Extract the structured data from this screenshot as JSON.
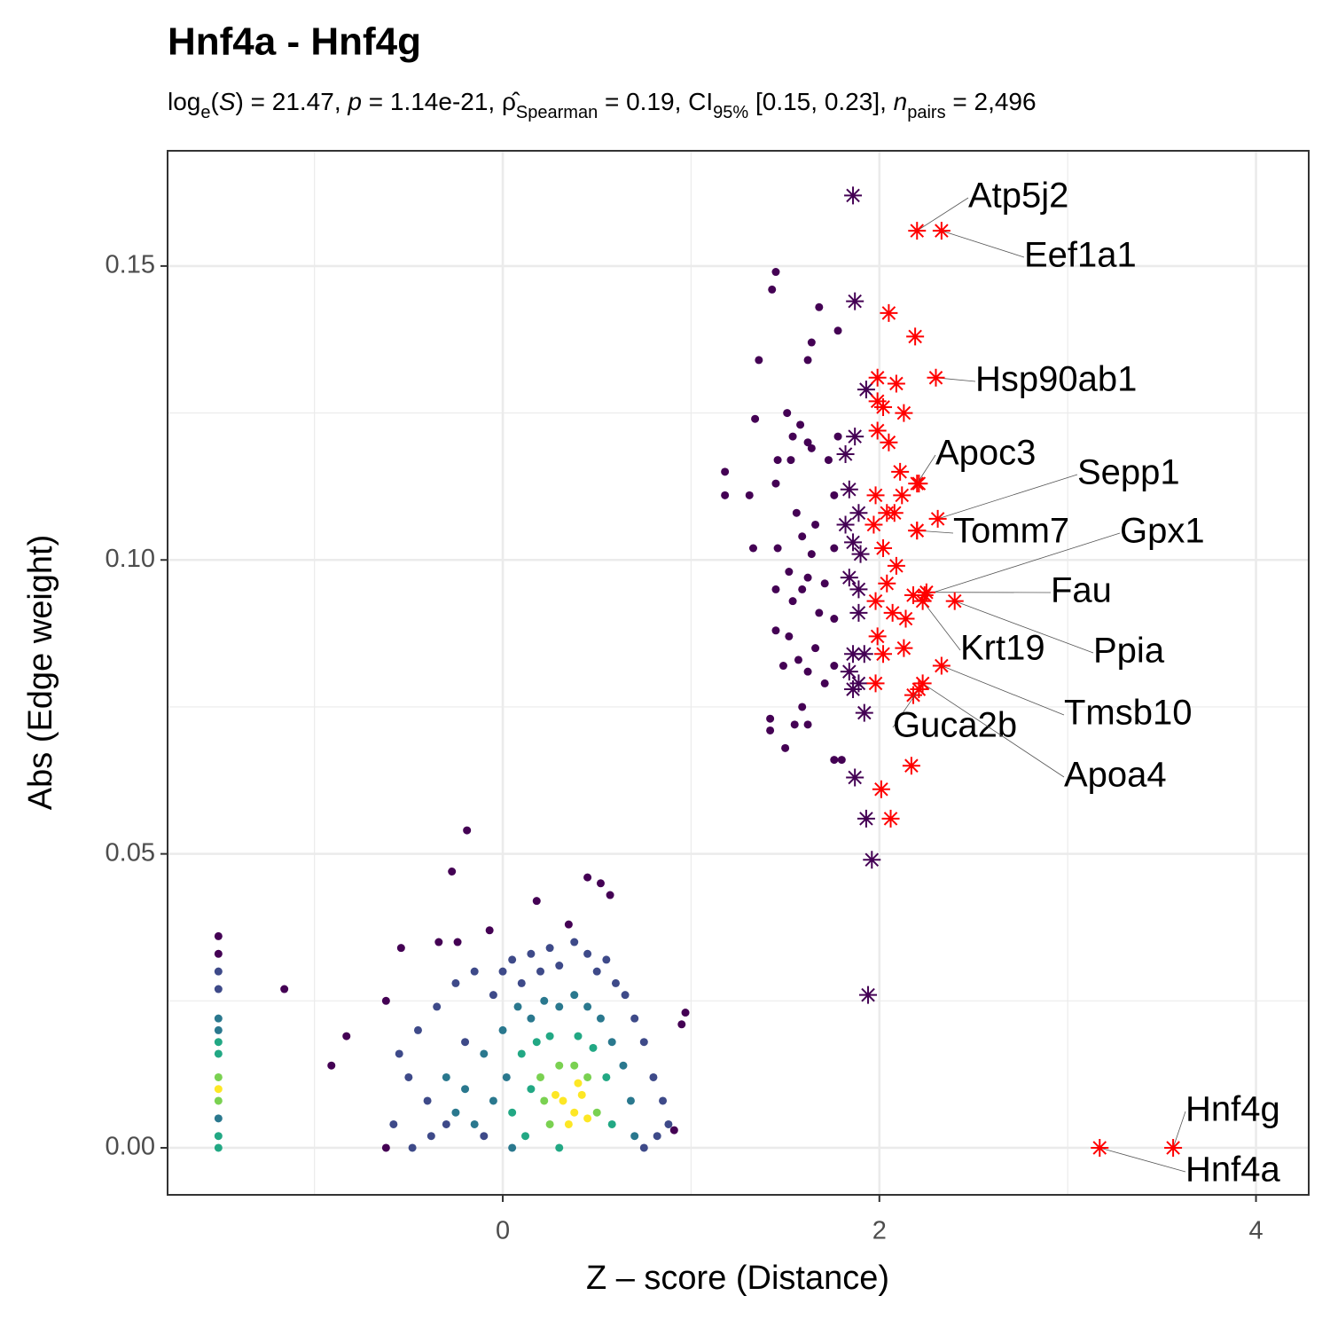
{
  "chart_data": {
    "type": "scatter",
    "title": "Hnf4a - Hnf4g",
    "subtitle": [
      {
        "text": "log",
        "style": "normal"
      },
      {
        "text": "e",
        "style": "sub"
      },
      {
        "text": "(",
        "style": "normal"
      },
      {
        "text": "S",
        "style": "italic"
      },
      {
        "text": ") = 21.47, ",
        "style": "normal"
      },
      {
        "text": "p",
        "style": "italic"
      },
      {
        "text": " = 1.14e-21, ",
        "style": "normal"
      },
      {
        "text": "ρ̂",
        "style": "normal"
      },
      {
        "text": "Spearman",
        "style": "sub"
      },
      {
        "text": " = 0.19, CI",
        "style": "normal"
      },
      {
        "text": "95%",
        "style": "sub"
      },
      {
        "text": " [0.15, 0.23], ",
        "style": "normal"
      },
      {
        "text": "n",
        "style": "italic"
      },
      {
        "text": "pairs",
        "style": "sub"
      },
      {
        "text": " = 2,496",
        "style": "normal"
      }
    ],
    "xlabel": "Z – score (Distance)",
    "ylabel": "Abs (Edge weight)",
    "xlim": [
      -1.78,
      4.28
    ],
    "ylim": [
      -0.008,
      0.1696
    ],
    "xticks": [
      0,
      2,
      4
    ],
    "yticks": [
      {
        "value": 0,
        "label": "0.00"
      },
      {
        "value": 0.05,
        "label": "0.05"
      },
      {
        "value": 0.1,
        "label": "0.10"
      },
      {
        "value": 0.15,
        "label": "0.15"
      }
    ],
    "xminor": [
      -1,
      1,
      3
    ],
    "yminor": [
      0.025,
      0.075,
      0.125
    ],
    "grid": true,
    "series": [
      {
        "marker": "dot",
        "color": "#440154",
        "x": [
          1.45,
          1.43,
          1.68,
          1.78,
          1.64,
          1.36,
          1.62,
          1.34,
          1.51,
          1.58,
          1.54,
          1.62,
          1.78,
          1.18,
          1.46,
          1.53,
          1.64,
          1.73,
          1.18,
          1.45,
          1.31,
          1.56,
          1.76,
          1.66,
          1.59,
          1.33,
          1.46,
          1.64,
          1.76,
          1.52,
          1.62,
          1.71,
          1.45,
          1.59,
          1.54,
          1.68,
          1.76,
          1.45,
          1.52,
          1.66,
          1.49,
          1.57,
          1.62,
          1.76,
          1.71,
          1.59,
          1.42,
          1.55,
          1.42,
          1.62,
          1.5,
          1.76,
          1.8,
          -0.19,
          -0.27,
          0.45,
          0.52,
          0.18,
          0.57,
          -0.07,
          0.35,
          -1.16,
          -0.83,
          -0.91,
          -0.62,
          0.97,
          0.95,
          -0.62,
          0.91,
          -0.54,
          -0.34,
          -0.24,
          -1.51,
          -1.51
        ],
        "values": [
          0.149,
          0.146,
          0.143,
          0.139,
          0.137,
          0.134,
          0.134,
          0.124,
          0.125,
          0.123,
          0.121,
          0.12,
          0.121,
          0.115,
          0.117,
          0.117,
          0.119,
          0.117,
          0.111,
          0.113,
          0.111,
          0.108,
          0.111,
          0.106,
          0.104,
          0.102,
          0.102,
          0.101,
          0.102,
          0.098,
          0.097,
          0.096,
          0.095,
          0.095,
          0.093,
          0.091,
          0.09,
          0.088,
          0.087,
          0.085,
          0.082,
          0.083,
          0.081,
          0.082,
          0.079,
          0.075,
          0.073,
          0.072,
          0.071,
          0.072,
          0.068,
          0.066,
          0.066,
          0.054,
          0.047,
          0.046,
          0.045,
          0.042,
          0.043,
          0.037,
          0.038,
          0.027,
          0.019,
          0.014,
          0.025,
          0.023,
          0.021,
          0.0,
          0.003,
          0.034,
          0.035,
          0.035,
          0.036,
          0.033
        ]
      },
      {
        "marker": "dot",
        "color": "#3e4a89",
        "x": [
          -0.55,
          -0.5,
          -0.45,
          -0.4,
          -0.35,
          -0.3,
          -0.25,
          -0.2,
          -0.15,
          -0.1,
          -0.05,
          0.0,
          0.05,
          0.1,
          0.15,
          0.2,
          0.25,
          0.3,
          0.38,
          0.45,
          0.5,
          0.55,
          0.6,
          0.65,
          0.7,
          0.75,
          0.8,
          0.85,
          0.88,
          -0.58,
          -0.48,
          -0.38,
          0.75,
          0.82,
          -1.51,
          -1.51
        ],
        "values": [
          0.016,
          0.012,
          0.02,
          0.008,
          0.024,
          0.004,
          0.028,
          0.018,
          0.03,
          0.002,
          0.026,
          0.03,
          0.032,
          0.028,
          0.033,
          0.03,
          0.034,
          0.031,
          0.035,
          0.033,
          0.03,
          0.032,
          0.028,
          0.026,
          0.022,
          0.018,
          0.012,
          0.008,
          0.004,
          0.004,
          0.0,
          0.002,
          0.0,
          0.002,
          0.03,
          0.027
        ]
      },
      {
        "marker": "dot",
        "color": "#2a788e",
        "x": [
          -0.3,
          -0.25,
          -0.2,
          -0.15,
          -0.1,
          -0.05,
          0.0,
          0.05,
          0.08,
          0.15,
          0.22,
          0.3,
          0.38,
          0.45,
          0.52,
          0.58,
          0.64,
          0.68,
          0.7,
          0.02,
          -1.51,
          -1.51,
          -1.51
        ],
        "values": [
          0.012,
          0.006,
          0.01,
          0.004,
          0.016,
          0.008,
          0.02,
          0.0,
          0.024,
          0.022,
          0.025,
          0.024,
          0.026,
          0.024,
          0.022,
          0.018,
          0.014,
          0.008,
          0.002,
          0.012,
          0.022,
          0.02,
          0.005
        ]
      },
      {
        "marker": "dot",
        "color": "#22a884",
        "x": [
          0.05,
          0.1,
          0.12,
          0.18,
          0.25,
          0.3,
          0.4,
          0.48,
          0.55,
          0.58,
          0.15,
          -1.51,
          -1.51,
          -1.51,
          -1.51
        ],
        "values": [
          0.006,
          0.016,
          0.002,
          0.018,
          0.019,
          0.0,
          0.019,
          0.017,
          0.012,
          0.004,
          0.01,
          0.018,
          0.016,
          0.002,
          0.0
        ]
      },
      {
        "marker": "dot",
        "color": "#7ad151",
        "x": [
          0.2,
          0.25,
          0.3,
          0.38,
          0.45,
          0.5,
          0.22,
          -1.51,
          -1.51
        ],
        "values": [
          0.012,
          0.004,
          0.014,
          0.014,
          0.012,
          0.006,
          0.008,
          0.012,
          0.008
        ]
      },
      {
        "marker": "dot",
        "color": "#fde725",
        "x": [
          0.32,
          0.38,
          0.42,
          0.35,
          0.28,
          0.45,
          0.4,
          -1.51
        ],
        "values": [
          0.008,
          0.006,
          0.009,
          0.004,
          0.009,
          0.005,
          0.011,
          0.01
        ]
      },
      {
        "marker": "star",
        "color": "#440154",
        "x": [
          1.86,
          1.87,
          1.93,
          1.87,
          1.82,
          1.84,
          1.89,
          1.82,
          1.86,
          1.9,
          1.84,
          1.89,
          1.89,
          1.86,
          1.92,
          1.84,
          1.89,
          1.86,
          1.92,
          1.87,
          1.93,
          1.96,
          1.94
        ],
        "values": [
          0.162,
          0.144,
          0.129,
          0.121,
          0.118,
          0.112,
          0.108,
          0.106,
          0.103,
          0.101,
          0.097,
          0.095,
          0.091,
          0.084,
          0.084,
          0.081,
          0.079,
          0.078,
          0.074,
          0.063,
          0.056,
          0.049,
          0.026
        ]
      },
      {
        "marker": "star",
        "color": "#ff0000",
        "x": [
          2.05,
          2.19,
          1.99,
          2.09,
          1.99,
          2.02,
          2.13,
          1.99,
          2.05,
          2.11,
          2.21,
          1.98,
          2.12,
          2.04,
          2.08,
          1.97,
          2.2,
          2.02,
          2.09,
          2.04,
          2.18,
          1.98,
          2.14,
          2.07,
          1.99,
          2.13,
          2.02,
          1.98,
          2.18,
          2.17,
          2.01,
          2.06
        ],
        "values": [
          0.142,
          0.138,
          0.131,
          0.13,
          0.127,
          0.126,
          0.125,
          0.122,
          0.12,
          0.115,
          0.113,
          0.111,
          0.111,
          0.108,
          0.108,
          0.106,
          0.105,
          0.102,
          0.099,
          0.096,
          0.094,
          0.093,
          0.09,
          0.091,
          0.087,
          0.085,
          0.084,
          0.079,
          0.077,
          0.065,
          0.061,
          0.056
        ]
      }
    ],
    "annotations": [
      {
        "text": "Atp5j2",
        "x": 2.2,
        "y": 0.156
      },
      {
        "text": "Eef1a1",
        "x": 2.33,
        "y": 0.156
      },
      {
        "text": "Hsp90ab1",
        "x": 2.3,
        "y": 0.131
      },
      {
        "text": "Apoc3",
        "x": 2.2,
        "y": 0.113
      },
      {
        "text": "Sepp1",
        "x": 2.31,
        "y": 0.107
      },
      {
        "text": "Tomm7",
        "x": 2.2,
        "y": 0.105
      },
      {
        "text": "Gpx1",
        "x": 2.24,
        "y": 0.094
      },
      {
        "text": "Fau",
        "x": 2.25,
        "y": 0.0945
      },
      {
        "text": "Krt19",
        "x": 2.23,
        "y": 0.093
      },
      {
        "text": "Ppia",
        "x": 2.4,
        "y": 0.093
      },
      {
        "text": "Tmsb10",
        "x": 2.33,
        "y": 0.082
      },
      {
        "text": "Guca2b",
        "x": 2.21,
        "y": 0.078
      },
      {
        "text": "Apoa4",
        "x": 2.23,
        "y": 0.079
      },
      {
        "text": "Hnf4g",
        "x": 3.56,
        "y": 0
      },
      {
        "text": "Hnf4a",
        "x": 3.17,
        "y": 0
      }
    ],
    "annotation_color": "#ff0000"
  }
}
